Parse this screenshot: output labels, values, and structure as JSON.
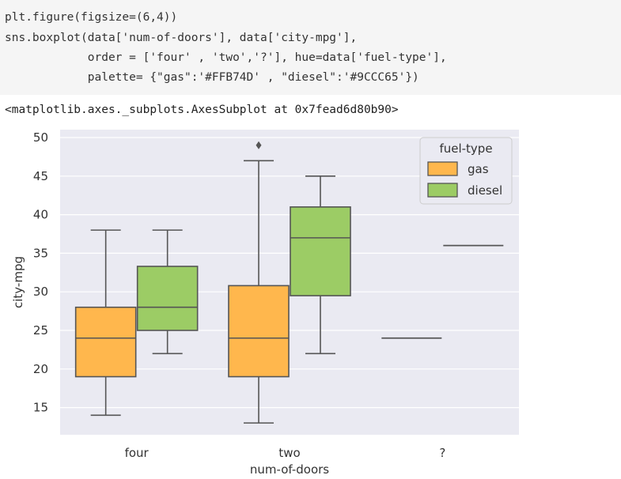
{
  "code": {
    "lines": [
      "plt.figure(figsize=(6,4))",
      "sns.boxplot(data['num-of-doors'], data['city-mpg'],",
      "            order = ['four' , 'two','?'], hue=data['fuel-type'],",
      "            palette= {\"gas\":'#FFB74D' , \"diesel\":'#9CCC65'})"
    ]
  },
  "output": {
    "text": "<matplotlib.axes._subplots.AxesSubplot at 0x7fead6d80b90>"
  },
  "chart_data": {
    "type": "box",
    "categories": [
      "four",
      "two",
      "?"
    ],
    "xlabel": "num-of-doors",
    "ylabel": "city-mpg",
    "ylim": [
      12,
      51
    ],
    "yticks": [
      15,
      20,
      25,
      30,
      35,
      40,
      45,
      50
    ],
    "grid": true,
    "legend": {
      "title": "fuel-type",
      "placement": "top-right"
    },
    "colors": {
      "gas": "#FFB74D",
      "diesel": "#9CCC65",
      "background": "#EAEAF2",
      "line": "#555555"
    },
    "series": [
      {
        "name": "gas",
        "color": "#FFB74D",
        "boxes": [
          {
            "category": "four",
            "whislo": 14,
            "q1": 19,
            "med": 24,
            "q3": 28,
            "whishi": 38,
            "fliers": []
          },
          {
            "category": "two",
            "whislo": 13,
            "q1": 19,
            "med": 24,
            "q3": 30.8,
            "whishi": 47,
            "fliers": [
              49
            ]
          },
          {
            "category": "?",
            "whislo": 24,
            "q1": 24,
            "med": 24,
            "q3": 24,
            "whishi": 24,
            "fliers": []
          }
        ]
      },
      {
        "name": "diesel",
        "color": "#9CCC65",
        "boxes": [
          {
            "category": "four",
            "whislo": 22,
            "q1": 25,
            "med": 28,
            "q3": 33.3,
            "whishi": 38,
            "fliers": []
          },
          {
            "category": "two",
            "whislo": 22,
            "q1": 29.5,
            "med": 37,
            "q3": 41,
            "whishi": 45,
            "fliers": []
          },
          {
            "category": "?",
            "whislo": 36,
            "q1": 36,
            "med": 36,
            "q3": 36,
            "whishi": 36,
            "fliers": []
          }
        ]
      }
    ]
  }
}
